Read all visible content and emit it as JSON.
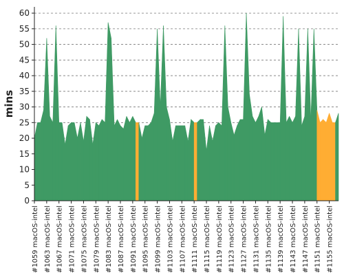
{
  "chart_data": {
    "type": "area",
    "ylabel": "mins",
    "ylim": [
      0,
      62
    ],
    "yticks": [
      0,
      5,
      10,
      15,
      20,
      25,
      30,
      35,
      40,
      45,
      50,
      55,
      60
    ],
    "grid": "horizontal-dashed",
    "colors": {
      "ok": "#3f9a64",
      "warn": "#ffad33"
    },
    "x": [
      1059,
      1060,
      1061,
      1062,
      1063,
      1064,
      1065,
      1066,
      1067,
      1068,
      1069,
      1070,
      1071,
      1072,
      1073,
      1074,
      1075,
      1076,
      1077,
      1078,
      1079,
      1080,
      1081,
      1082,
      1083,
      1084,
      1085,
      1086,
      1087,
      1088,
      1089,
      1090,
      1091,
      1092,
      1093,
      1094,
      1095,
      1096,
      1097,
      1098,
      1099,
      1100,
      1101,
      1102,
      1103,
      1104,
      1105,
      1106,
      1107,
      1108,
      1109,
      1110,
      1111,
      1112,
      1113,
      1114,
      1115,
      1116,
      1117,
      1118,
      1119,
      1120,
      1121,
      1122,
      1123,
      1124,
      1125,
      1126,
      1127,
      1128,
      1129,
      1130,
      1131,
      1132,
      1133,
      1134,
      1135,
      1136,
      1137,
      1138,
      1139,
      1140,
      1141,
      1142,
      1143,
      1144,
      1145,
      1146,
      1147,
      1148,
      1149,
      1150,
      1151,
      1152,
      1153,
      1154,
      1155,
      1156,
      1157,
      1158
    ],
    "xtick_labels": [
      "#1059 macOS-intel",
      "#1063 macOS-intel",
      "#1067 macOS-intel",
      "#1071 macOS-intel",
      "#1075 macOS-intel",
      "#1079 macOS-intel",
      "#1083 macOS-intel",
      "#1087 macOS-intel",
      "#1091 macOS-intel",
      "#1095 macOS-intel",
      "#1099 macOS-intel",
      "#1103 macOS-intel",
      "#1107 macOS-intel",
      "#1111 macOS-intel",
      "#1115 macOS-intel",
      "#1119 macOS-intel",
      "#1123 macOS-intel",
      "#1127 macOS-intel",
      "#1131 macOS-intel",
      "#1135 macOS-intel",
      "#1139 macOS-intel",
      "#1143 macOS-intel",
      "#1147 macOS-intel",
      "#1151 macOS-intel",
      "#1155 macOS-intel"
    ],
    "values": [
      20,
      25,
      25,
      29,
      52,
      27,
      25,
      56,
      25,
      25,
      18,
      24,
      25,
      25,
      20,
      25,
      19,
      27,
      26,
      18,
      25,
      24,
      26,
      25,
      57,
      52,
      24,
      26,
      24,
      23,
      27,
      25,
      27,
      25,
      25,
      20,
      24,
      24,
      25,
      28,
      55,
      30,
      56,
      30,
      26,
      19,
      24,
      24,
      24,
      24,
      19,
      26,
      25,
      25,
      26,
      26,
      16,
      24,
      19,
      24,
      25,
      24,
      56,
      30,
      25,
      21,
      24,
      26,
      26,
      60,
      34,
      27,
      25,
      27,
      30,
      21,
      26,
      25,
      25,
      25,
      25,
      59,
      25,
      27,
      25,
      27,
      55,
      24,
      27,
      55,
      26,
      55,
      29,
      25,
      26,
      25,
      28,
      25,
      25,
      28
    ],
    "status": [
      "ok",
      "ok",
      "ok",
      "ok",
      "ok",
      "ok",
      "ok",
      "ok",
      "ok",
      "ok",
      "ok",
      "ok",
      "ok",
      "ok",
      "ok",
      "ok",
      "ok",
      "ok",
      "ok",
      "ok",
      "ok",
      "ok",
      "ok",
      "ok",
      "ok",
      "ok",
      "ok",
      "ok",
      "ok",
      "ok",
      "ok",
      "ok",
      "ok",
      "warn",
      "ok",
      "ok",
      "ok",
      "ok",
      "ok",
      "ok",
      "ok",
      "ok",
      "ok",
      "ok",
      "ok",
      "ok",
      "ok",
      "ok",
      "ok",
      "ok",
      "ok",
      "ok",
      "warn",
      "ok",
      "ok",
      "ok",
      "ok",
      "ok",
      "ok",
      "ok",
      "ok",
      "ok",
      "ok",
      "ok",
      "ok",
      "ok",
      "ok",
      "ok",
      "ok",
      "ok",
      "ok",
      "ok",
      "ok",
      "ok",
      "ok",
      "ok",
      "ok",
      "ok",
      "ok",
      "ok",
      "ok",
      "ok",
      "ok",
      "ok",
      "ok",
      "ok",
      "ok",
      "ok",
      "ok",
      "ok",
      "ok",
      "ok",
      "warn",
      "warn",
      "warn",
      "warn",
      "warn",
      "warn",
      "ok",
      "ok",
      "ok"
    ]
  }
}
